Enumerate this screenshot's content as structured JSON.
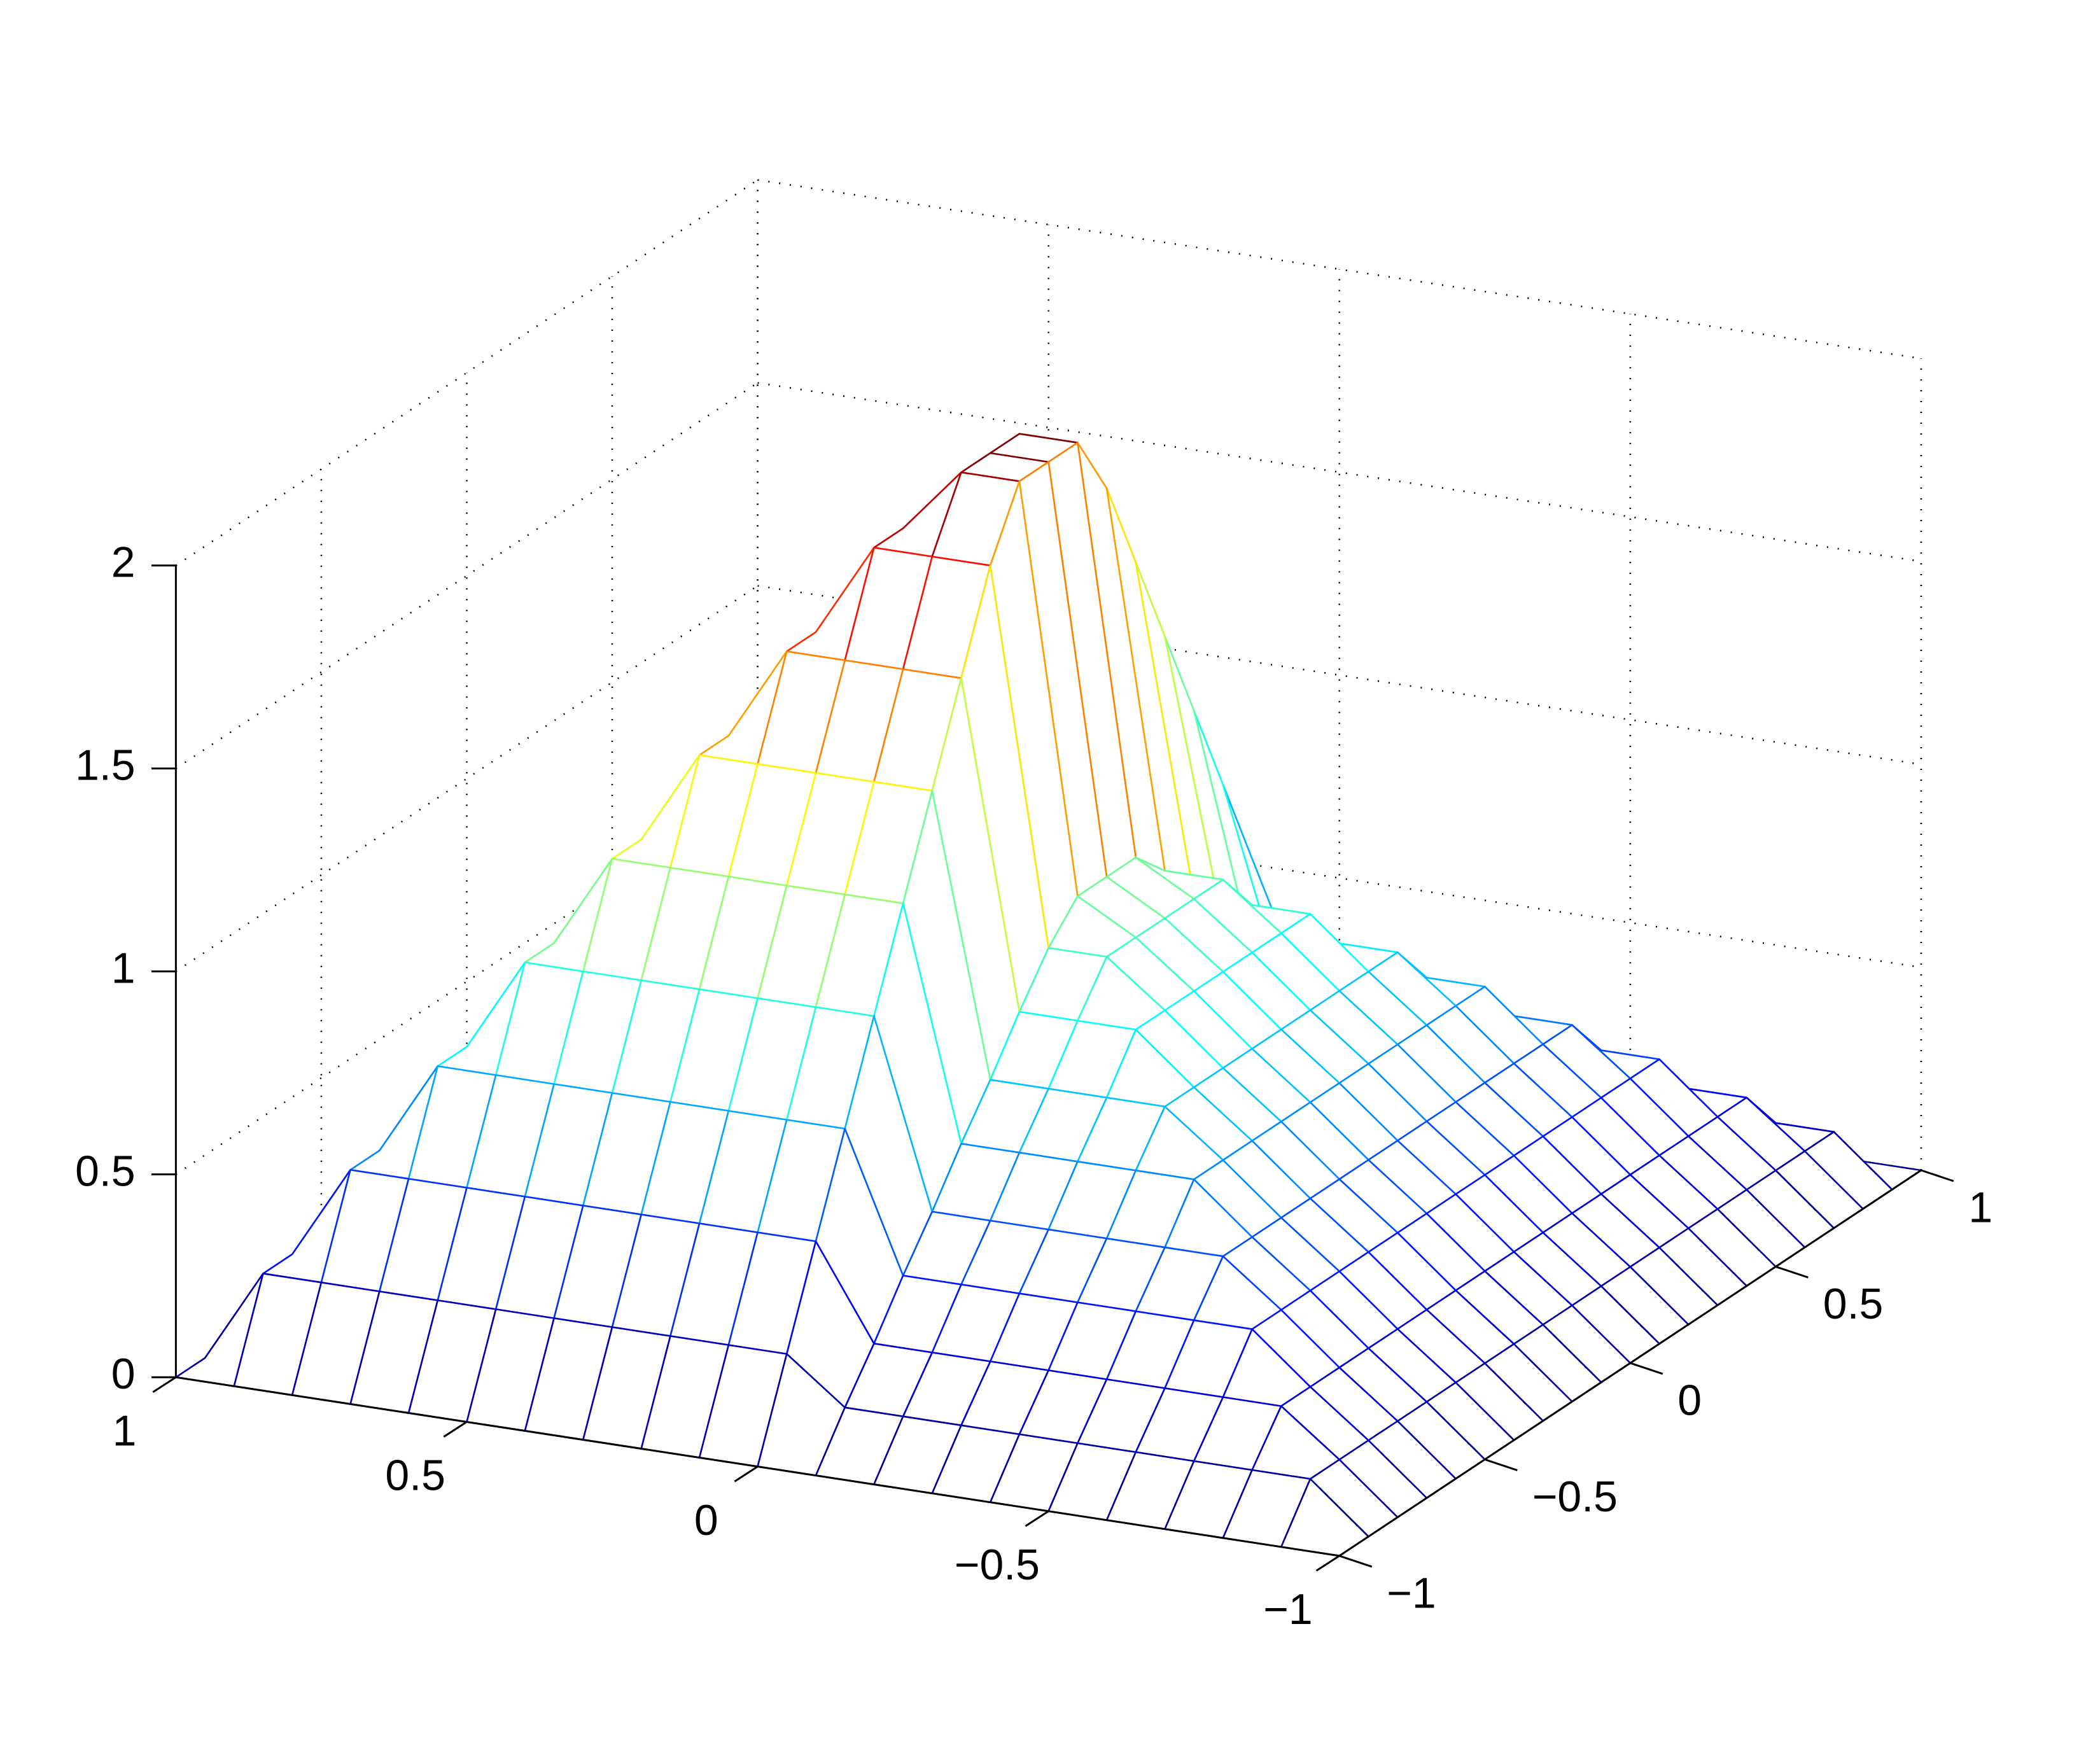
{
  "chart_data": {
    "type": "mesh",
    "x": [
      -1,
      -0.9,
      -0.8,
      -0.7,
      -0.6,
      -0.5,
      -0.4,
      -0.3,
      -0.2,
      -0.1,
      0,
      0.1,
      0.2,
      0.3,
      0.4,
      0.5,
      0.6,
      0.7,
      0.8,
      0.9,
      1
    ],
    "y": [
      -1,
      -0.9,
      -0.8,
      -0.7,
      -0.6,
      -0.5,
      -0.4,
      -0.3,
      -0.2,
      -0.1,
      0,
      0.1,
      0.2,
      0.3,
      0.4,
      0.5,
      0.6,
      0.7,
      0.8,
      0.9,
      1
    ],
    "z": [
      [
        0,
        0,
        0,
        0,
        0,
        0,
        0,
        0,
        0,
        0,
        0,
        0,
        0,
        0,
        0,
        0,
        0,
        0,
        0,
        0,
        0
      ],
      [
        0,
        0.12,
        0.12,
        0.12,
        0.12,
        0.12,
        0.12,
        0.12,
        0.12,
        0.12,
        0.23,
        0.23,
        0.23,
        0.23,
        0.23,
        0.23,
        0.23,
        0.23,
        0.23,
        0.23,
        0
      ],
      [
        0,
        0.12,
        0.23,
        0.23,
        0.23,
        0.23,
        0.23,
        0.23,
        0.23,
        0.23,
        0.46,
        0.46,
        0.46,
        0.46,
        0.46,
        0.46,
        0.46,
        0.46,
        0.46,
        0.23,
        0
      ],
      [
        0,
        0.12,
        0.23,
        0.35,
        0.35,
        0.35,
        0.35,
        0.35,
        0.35,
        0.35,
        0.69,
        0.69,
        0.69,
        0.69,
        0.69,
        0.69,
        0.69,
        0.69,
        0.46,
        0.23,
        0
      ],
      [
        0,
        0.12,
        0.23,
        0.35,
        0.46,
        0.46,
        0.46,
        0.46,
        0.46,
        0.46,
        0.92,
        0.92,
        0.92,
        0.92,
        0.92,
        0.92,
        0.92,
        0.69,
        0.46,
        0.23,
        0
      ],
      [
        0,
        0.12,
        0.23,
        0.35,
        0.46,
        0.58,
        0.58,
        0.58,
        0.58,
        0.58,
        1.15,
        1.15,
        1.15,
        1.15,
        1.15,
        1.15,
        0.92,
        0.69,
        0.46,
        0.23,
        0
      ],
      [
        0,
        0.12,
        0.23,
        0.35,
        0.46,
        0.58,
        0.69,
        0.69,
        0.69,
        0.69,
        1.38,
        1.38,
        1.38,
        1.38,
        1.38,
        1.15,
        0.92,
        0.69,
        0.46,
        0.23,
        0
      ],
      [
        0,
        0.12,
        0.23,
        0.35,
        0.46,
        0.58,
        0.69,
        0.81,
        0.81,
        0.81,
        1.61,
        1.61,
        1.61,
        1.61,
        1.38,
        1.15,
        0.92,
        0.69,
        0.46,
        0.23,
        0
      ],
      [
        0,
        0.12,
        0.23,
        0.35,
        0.46,
        0.58,
        0.69,
        0.81,
        0.92,
        0.92,
        1.84,
        1.84,
        1.84,
        1.61,
        1.38,
        1.15,
        0.92,
        0.69,
        0.46,
        0.23,
        0
      ],
      [
        0,
        0.12,
        0.23,
        0.35,
        0.46,
        0.58,
        0.69,
        0.81,
        0.92,
        1,
        2,
        2,
        1.84,
        1.61,
        1.38,
        1.15,
        0.92,
        0.69,
        0.46,
        0.23,
        0
      ],
      [
        0,
        0.12,
        0.23,
        0.35,
        0.46,
        0.58,
        0.69,
        0.81,
        0.92,
        1,
        2,
        2,
        1.84,
        1.61,
        1.38,
        1.15,
        0.92,
        0.69,
        0.46,
        0.23,
        0
      ],
      [
        0,
        0.12,
        0.23,
        0.35,
        0.46,
        0.58,
        0.69,
        0.81,
        0.92,
        1,
        2,
        2,
        1.84,
        1.61,
        1.38,
        1.15,
        0.92,
        0.69,
        0.46,
        0.23,
        0
      ],
      [
        0,
        0.12,
        0.23,
        0.35,
        0.46,
        0.58,
        0.69,
        0.81,
        0.92,
        0.92,
        1.84,
        1.84,
        1.84,
        1.61,
        1.38,
        1.15,
        0.92,
        0.69,
        0.46,
        0.23,
        0
      ],
      [
        0,
        0.12,
        0.23,
        0.35,
        0.46,
        0.58,
        0.69,
        0.81,
        0.81,
        0.81,
        1.61,
        1.61,
        1.61,
        1.61,
        1.38,
        1.15,
        0.92,
        0.69,
        0.46,
        0.23,
        0
      ],
      [
        0,
        0.12,
        0.23,
        0.35,
        0.46,
        0.58,
        0.69,
        0.69,
        0.69,
        0.69,
        1.38,
        1.38,
        1.38,
        1.38,
        1.38,
        1.15,
        0.92,
        0.69,
        0.46,
        0.23,
        0
      ],
      [
        0,
        0.12,
        0.23,
        0.35,
        0.46,
        0.58,
        0.58,
        0.58,
        0.58,
        0.58,
        1.15,
        1.15,
        1.15,
        1.15,
        1.15,
        1.15,
        0.92,
        0.69,
        0.46,
        0.23,
        0
      ],
      [
        0,
        0.12,
        0.23,
        0.35,
        0.46,
        0.46,
        0.46,
        0.46,
        0.46,
        0.46,
        0.92,
        0.92,
        0.92,
        0.92,
        0.92,
        0.92,
        0.92,
        0.69,
        0.46,
        0.23,
        0
      ],
      [
        0,
        0.12,
        0.23,
        0.35,
        0.35,
        0.35,
        0.35,
        0.35,
        0.35,
        0.35,
        0.69,
        0.69,
        0.69,
        0.69,
        0.69,
        0.69,
        0.69,
        0.69,
        0.46,
        0.23,
        0
      ],
      [
        0,
        0.12,
        0.23,
        0.23,
        0.23,
        0.23,
        0.23,
        0.23,
        0.23,
        0.23,
        0.46,
        0.46,
        0.46,
        0.46,
        0.46,
        0.46,
        0.46,
        0.46,
        0.46,
        0.23,
        0
      ],
      [
        0,
        0.12,
        0.12,
        0.12,
        0.12,
        0.12,
        0.12,
        0.12,
        0.12,
        0.12,
        0.23,
        0.23,
        0.23,
        0.23,
        0.23,
        0.23,
        0.23,
        0.23,
        0.23,
        0.23,
        0
      ],
      [
        0,
        0,
        0,
        0,
        0,
        0,
        0,
        0,
        0,
        0,
        0,
        0,
        0,
        0,
        0,
        0,
        0,
        0,
        0,
        0,
        0
      ]
    ],
    "xlim": [
      -1,
      1
    ],
    "ylim": [
      -1,
      1
    ],
    "zlim": [
      0,
      2
    ],
    "xticks": [
      {
        "value": -1,
        "label": "−1"
      },
      {
        "value": -0.5,
        "label": "−0.5"
      },
      0,
      0.5,
      1
    ],
    "yticks": [
      {
        "value": -1,
        "label": "−1"
      },
      {
        "value": -0.5,
        "label": "−0.5"
      },
      0,
      0.5,
      1
    ],
    "zticks": [
      0,
      0.5,
      1,
      1.5,
      2
    ],
    "grid": true,
    "colormap": "jet"
  }
}
